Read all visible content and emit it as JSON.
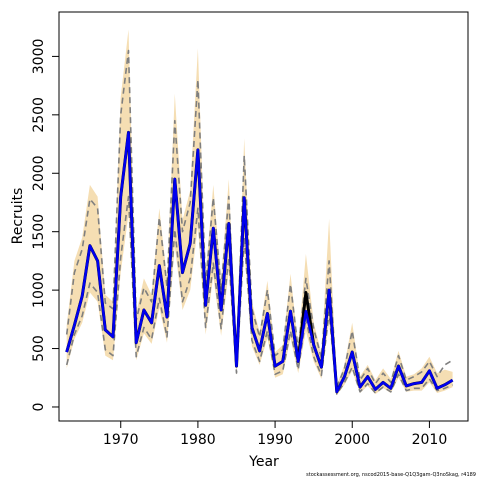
{
  "chart_data": {
    "type": "line",
    "xlabel": "Year",
    "ylabel": "Recruits",
    "xlim": [
      1962,
      2015
    ],
    "ylim": [
      -120,
      3380
    ],
    "x_ticks": [
      1970,
      1980,
      1990,
      2000,
      2010
    ],
    "y_ticks": [
      0,
      500,
      1000,
      1500,
      2000,
      2500,
      3000
    ],
    "grid": false,
    "legend": "none",
    "footnote": "stockassessment.org, nscod2015-base-Q1Q3gam-Q3noSkag, r4189",
    "x": [
      1963,
      1964,
      1965,
      1966,
      1967,
      1968,
      1969,
      1970,
      1971,
      1972,
      1973,
      1974,
      1975,
      1976,
      1977,
      1978,
      1979,
      1980,
      1981,
      1982,
      1983,
      1984,
      1985,
      1986,
      1987,
      1988,
      1989,
      1990,
      1991,
      1992,
      1993,
      1994,
      1995,
      1996,
      1997,
      1998,
      1999,
      2000,
      2001,
      2002,
      2003,
      2004,
      2005,
      2006,
      2007,
      2008,
      2009,
      2010,
      2011,
      2012,
      2013
    ],
    "series": [
      {
        "role": "estimate",
        "color": "#0000ee",
        "values": [
          470,
          700,
          950,
          1380,
          1250,
          660,
          600,
          1800,
          2350,
          550,
          830,
          720,
          1210,
          770,
          1950,
          1150,
          1400,
          2200,
          870,
          1530,
          830,
          1570,
          350,
          1790,
          680,
          480,
          800,
          350,
          390,
          820,
          390,
          820,
          530,
          340,
          1000,
          130,
          260,
          470,
          170,
          260,
          150,
          210,
          160,
          350,
          180,
          200,
          210,
          310,
          160,
          190,
          230
        ]
      },
      {
        "role": "estimate-black",
        "color": "#000000",
        "values": [
          470,
          700,
          950,
          1380,
          1250,
          660,
          600,
          1800,
          2350,
          550,
          830,
          720,
          1210,
          770,
          1950,
          1150,
          1400,
          2200,
          870,
          1530,
          830,
          1570,
          350,
          1790,
          680,
          480,
          800,
          350,
          390,
          820,
          390,
          980,
          530,
          340,
          1000,
          130,
          260,
          470,
          170,
          260,
          150,
          210,
          160,
          350,
          180,
          200,
          210,
          310,
          160,
          190,
          230
        ]
      },
      {
        "role": "upper",
        "color": "#7f7f7f",
        "values": [
          620,
          1150,
          1350,
          1780,
          1700,
          890,
          840,
          2500,
          3050,
          740,
          1020,
          900,
          1620,
          1030,
          2450,
          1500,
          1750,
          2800,
          1050,
          1790,
          1010,
          1800,
          380,
          2150,
          840,
          600,
          1000,
          440,
          490,
          1050,
          490,
          1100,
          670,
          420,
          1250,
          170,
          330,
          650,
          230,
          330,
          200,
          290,
          210,
          440,
          230,
          260,
          300,
          390,
          260,
          360,
          400
        ]
      },
      {
        "role": "lower",
        "color": "#7f7f7f",
        "values": [
          360,
          620,
          780,
          1060,
          980,
          490,
          440,
          1280,
          1800,
          430,
          680,
          580,
          930,
          600,
          1520,
          900,
          1100,
          1700,
          680,
          1230,
          670,
          1280,
          290,
          1450,
          570,
          390,
          650,
          280,
          310,
          650,
          320,
          760,
          430,
          270,
          810,
          110,
          210,
          340,
          130,
          200,
          120,
          170,
          130,
          280,
          140,
          160,
          160,
          240,
          140,
          160,
          190
        ]
      },
      {
        "role": "band-upper",
        "color": "#f5deb3",
        "values": [
          700,
          1250,
          1450,
          1900,
          1800,
          960,
          900,
          2650,
          3230,
          800,
          1100,
          960,
          1700,
          1100,
          2680,
          1600,
          1850,
          3070,
          1130,
          1900,
          1080,
          1950,
          420,
          2300,
          900,
          640,
          1080,
          470,
          530,
          1140,
          530,
          1310,
          720,
          460,
          1610,
          190,
          360,
          720,
          260,
          360,
          230,
          330,
          240,
          480,
          260,
          280,
          330,
          430,
          290,
          320,
          300
        ]
      },
      {
        "role": "band-lower",
        "color": "#f5deb3",
        "values": [
          330,
          580,
          720,
          980,
          900,
          440,
          400,
          1150,
          1650,
          400,
          630,
          540,
          850,
          550,
          1380,
          830,
          1000,
          1550,
          620,
          1120,
          610,
          1160,
          270,
          1330,
          520,
          360,
          590,
          250,
          280,
          590,
          290,
          650,
          390,
          240,
          730,
          100,
          190,
          310,
          120,
          180,
          110,
          160,
          120,
          250,
          130,
          140,
          140,
          210,
          120,
          140,
          170
        ]
      }
    ]
  }
}
